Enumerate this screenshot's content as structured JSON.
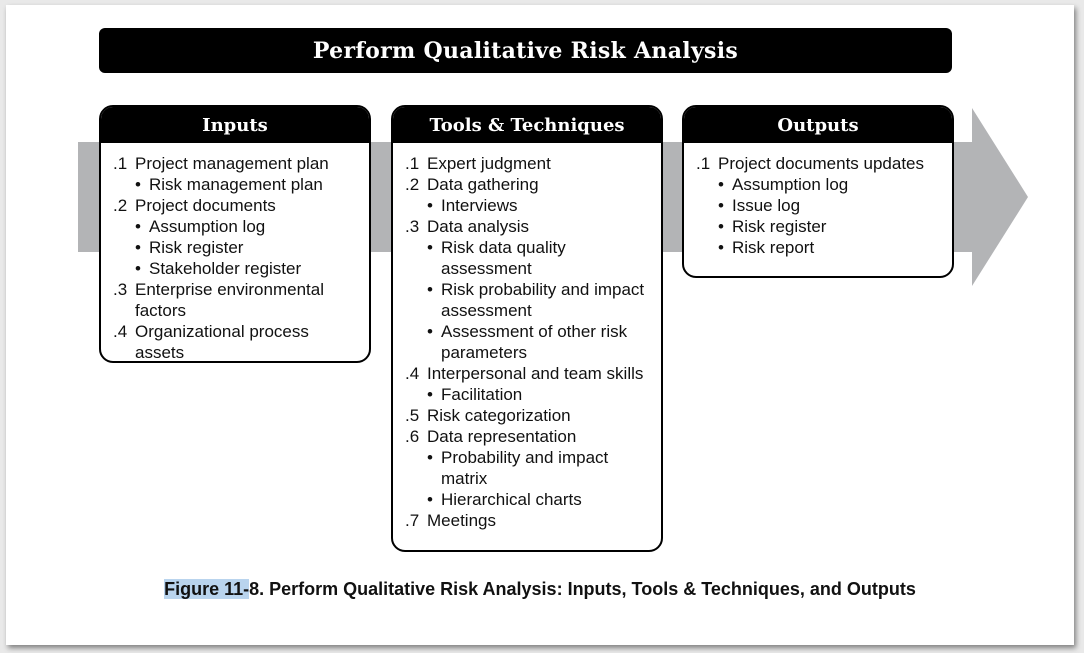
{
  "title": "Perform Qualitative Risk Analysis",
  "inputs": {
    "heading": "Inputs",
    "items": [
      {
        "num": ".1",
        "text": "Project management plan",
        "subs": [
          "Risk management plan"
        ]
      },
      {
        "num": ".2",
        "text": "Project documents",
        "subs": [
          "Assumption log",
          "Risk register",
          "Stakeholder register"
        ]
      },
      {
        "num": ".3",
        "text": "Enterprise environmental factors",
        "subs": []
      },
      {
        "num": ".4",
        "text": "Organizational process assets",
        "subs": []
      }
    ]
  },
  "tools": {
    "heading": "Tools & Techniques",
    "items": [
      {
        "num": ".1",
        "text": "Expert judgment",
        "subs": []
      },
      {
        "num": ".2",
        "text": "Data gathering",
        "subs": [
          "Interviews"
        ]
      },
      {
        "num": ".3",
        "text": "Data analysis",
        "subs": [
          "Risk data quality assessment",
          "Risk probability and impact assessment",
          "Assessment of other risk parameters"
        ]
      },
      {
        "num": ".4",
        "text": "Interpersonal and team skills",
        "subs": [
          "Facilitation"
        ]
      },
      {
        "num": ".5",
        "text": "Risk categorization",
        "subs": []
      },
      {
        "num": ".6",
        "text": "Data representation",
        "subs": [
          "Probability and impact matrix",
          "Hierarchical charts"
        ]
      },
      {
        "num": ".7",
        "text": "Meetings",
        "subs": []
      }
    ]
  },
  "outputs": {
    "heading": "Outputs",
    "items": [
      {
        "num": ".1",
        "text": "Project documents updates",
        "subs": [
          "Assumption log",
          "Issue log",
          "Risk register",
          "Risk report"
        ]
      }
    ]
  },
  "caption": {
    "highlight": "Figure 11-",
    "rest": "8. Perform Qualitative Risk Analysis: Inputs, Tools & Techniques, and Outputs"
  },
  "colors": {
    "arrow": "#b3b4b6",
    "box_header": "#000000",
    "caption_highlight": "#b9d4ee"
  }
}
